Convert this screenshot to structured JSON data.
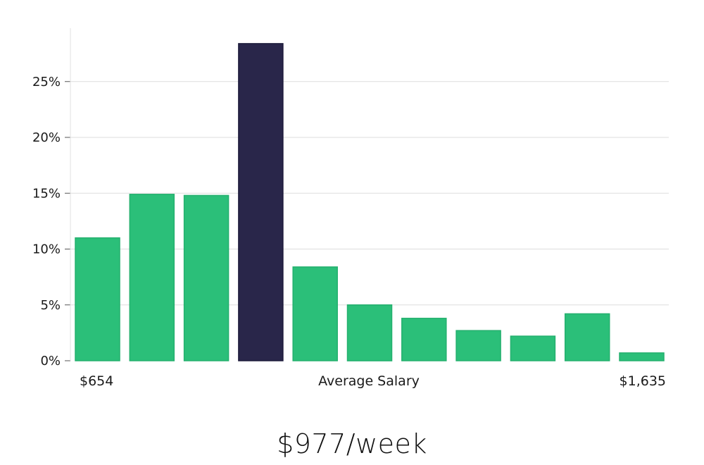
{
  "chart_data": {
    "type": "bar",
    "categories": [
      "",
      "",
      "",
      "",
      "",
      "",
      "",
      "",
      "",
      "",
      ""
    ],
    "values": [
      11.0,
      14.9,
      14.8,
      28.4,
      8.4,
      5.0,
      3.8,
      2.7,
      2.2,
      4.2,
      0.7
    ],
    "highlight_index": 3,
    "xlabel": "Average Salary",
    "x_min_label": "$654",
    "x_max_label": "$1,635",
    "ylabel": "",
    "ylim": [
      0,
      29.5
    ],
    "yticks": [
      0,
      5,
      10,
      15,
      20,
      25
    ],
    "ytick_labels": [
      "0%",
      "5%",
      "10%",
      "15%",
      "20%",
      "25%"
    ],
    "grid": true,
    "colors": {
      "bar": "#2bbf79",
      "highlight": "#29264a",
      "grid": "#dddddd",
      "axis": "#e2e2e2"
    }
  },
  "summary": {
    "salary_text": "$977/week"
  }
}
